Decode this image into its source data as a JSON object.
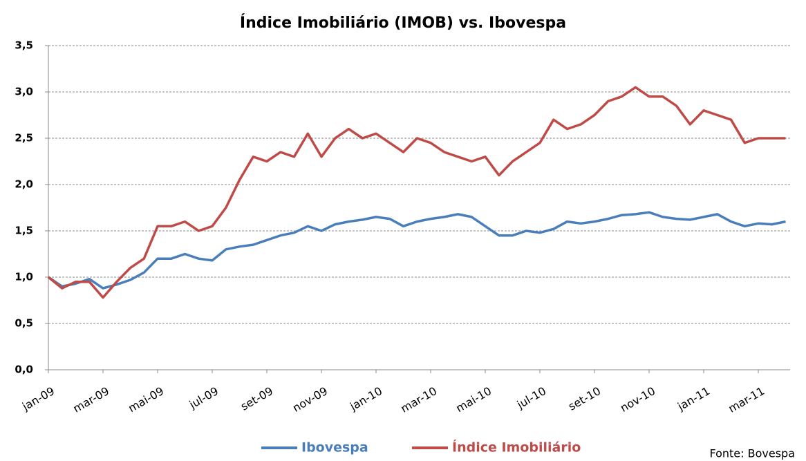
{
  "chart_data": {
    "type": "line",
    "title": "Índice Imobiliário (IMOB) vs. Ibovespa",
    "source": "Fonte: Bovespa",
    "categories": [
      "jan-09",
      null,
      null,
      null,
      "mar-09",
      null,
      null,
      null,
      "mai-09",
      null,
      null,
      null,
      "jul-09",
      null,
      null,
      null,
      "set-09",
      null,
      null,
      null,
      "nov-09",
      null,
      null,
      null,
      "jan-10",
      null,
      null,
      null,
      "mar-10",
      null,
      null,
      null,
      "mai-10",
      null,
      null,
      null,
      "jul-10",
      null,
      null,
      null,
      "set-10",
      null,
      null,
      null,
      "nov-10",
      null,
      null,
      null,
      "jan-11",
      null,
      null,
      null,
      "mar-11",
      null,
      null
    ],
    "series": [
      {
        "name": "Ibovespa",
        "color": "#4a7ebb",
        "values": [
          1.0,
          0.9,
          0.93,
          0.98,
          0.88,
          0.92,
          0.97,
          1.05,
          1.2,
          1.2,
          1.25,
          1.2,
          1.18,
          1.3,
          1.33,
          1.35,
          1.4,
          1.45,
          1.48,
          1.55,
          1.5,
          1.57,
          1.6,
          1.62,
          1.65,
          1.63,
          1.55,
          1.6,
          1.63,
          1.65,
          1.68,
          1.65,
          1.55,
          1.45,
          1.45,
          1.5,
          1.48,
          1.52,
          1.6,
          1.58,
          1.6,
          1.63,
          1.67,
          1.68,
          1.7,
          1.65,
          1.63,
          1.62,
          1.65,
          1.68,
          1.6,
          1.55,
          1.58,
          1.57,
          1.6
        ]
      },
      {
        "name": "Índice Imobiliário",
        "color": "#be4b48",
        "values": [
          1.0,
          0.88,
          0.95,
          0.95,
          0.78,
          0.95,
          1.1,
          1.2,
          1.55,
          1.55,
          1.6,
          1.5,
          1.55,
          1.75,
          2.05,
          2.3,
          2.25,
          2.35,
          2.3,
          2.55,
          2.3,
          2.5,
          2.6,
          2.5,
          2.55,
          2.45,
          2.35,
          2.5,
          2.45,
          2.35,
          2.3,
          2.25,
          2.3,
          2.1,
          2.25,
          2.35,
          2.45,
          2.7,
          2.6,
          2.65,
          2.75,
          2.9,
          2.95,
          3.05,
          2.95,
          2.95,
          2.85,
          2.65,
          2.8,
          2.75,
          2.7,
          2.45,
          2.5,
          2.5,
          2.5
        ]
      }
    ],
    "ylim": [
      0,
      3.5
    ],
    "yticks": [
      {
        "value": 0,
        "label": "0,0"
      },
      {
        "value": 0.5,
        "label": "0,5"
      },
      {
        "value": 1,
        "label": "1,0"
      },
      {
        "value": 1.5,
        "label": "1,5"
      },
      {
        "value": 2,
        "label": "2,0"
      },
      {
        "value": 2.5,
        "label": "2,5"
      },
      {
        "value": 3,
        "label": "3,0"
      },
      {
        "value": 3.5,
        "label": "3,5"
      }
    ],
    "grid": true,
    "legend": "bottom"
  }
}
